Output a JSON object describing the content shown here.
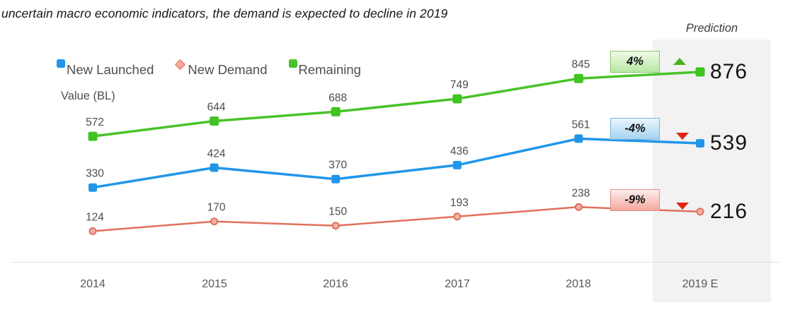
{
  "caption": "uncertain macro economic indicators, the demand is expected to decline in 2019",
  "prediction_label": "Prediction",
  "value_axis_label": "Value (BL)",
  "legend": [
    {
      "label": "New Launched",
      "marker": "square",
      "color": "#2196e8"
    },
    {
      "label": "New Demand",
      "marker": "diamond",
      "color": "#e8705a"
    },
    {
      "label": "Remaining",
      "marker": "square",
      "color": "#49c229"
    }
  ],
  "colors": {
    "trend_up": "#44b31f",
    "trend_down": "#e02414",
    "prediction_band": "#f2f2f2",
    "label_text": "#4d4d4d"
  },
  "chart_data": {
    "type": "line",
    "title": "uncertain macro economic indicators, the demand is expected to decline in 2019",
    "xlabel": "",
    "ylabel": "Value (BL)",
    "categories": [
      "2014",
      "2015",
      "2016",
      "2017",
      "2018",
      "2019 E"
    ],
    "prediction_category": "2019 E",
    "legend_position": "top-left",
    "grid": false,
    "series": [
      {
        "name": "New Launched",
        "color": "#2196e8",
        "marker": "square",
        "marker_fill": "#2196e8",
        "values": [
          330,
          424,
          370,
          436,
          561,
          539
        ],
        "prediction_value": 539,
        "change_badge": {
          "text": "-4%",
          "direction": "down",
          "bg_top": "#eaf5fd",
          "bg_bottom": "#a6d3f0",
          "border": "#74b2dd"
        }
      },
      {
        "name": "New Demand",
        "color": "#e0705c",
        "marker": "circle",
        "marker_fill": "#f3b2a6",
        "values": [
          124,
          170,
          150,
          193,
          238,
          216
        ],
        "prediction_value": 216,
        "change_badge": {
          "text": "-9%",
          "direction": "down",
          "bg_top": "#fdeeec",
          "bg_bottom": "#f3a89e",
          "border": "#df9186"
        }
      },
      {
        "name": "Remaining",
        "color": "#49c229",
        "marker": "square",
        "marker_fill": "#41c322",
        "values": [
          572,
          644,
          688,
          749,
          845,
          876
        ],
        "prediction_value": 876,
        "change_badge": {
          "text": "4%",
          "direction": "up",
          "bg_top": "#f0fbe7",
          "bg_bottom": "#b7e8a4",
          "border": "#85c868"
        }
      }
    ]
  }
}
